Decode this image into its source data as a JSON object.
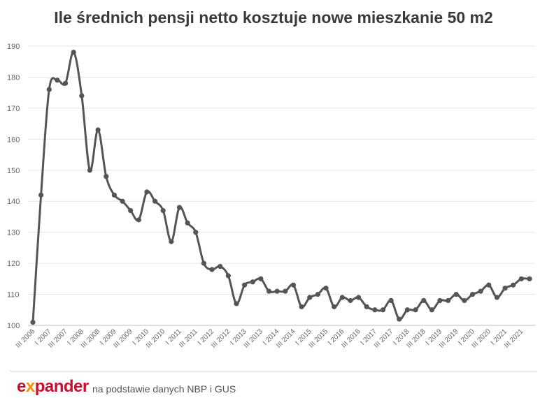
{
  "chart_data": {
    "type": "line",
    "title": "Ile średnich pensji netto kosztuje nowe mieszkanie 50 m2",
    "xlabel": "",
    "ylabel": "",
    "ylim": [
      100,
      190
    ],
    "yticks": [
      100,
      110,
      120,
      130,
      140,
      150,
      160,
      170,
      180,
      190
    ],
    "grid": true,
    "legend": "none",
    "line_color": "#555555",
    "x": [
      "III 2006",
      "IV 2006",
      "I 2007",
      "II 2007",
      "III 2007",
      "IV 2007",
      "I 2008",
      "II 2008",
      "III 2008",
      "IV 2008",
      "I 2009",
      "II 2009",
      "III 2009",
      "IV 2009",
      "I 2010",
      "II 2010",
      "III 2010",
      "IV 2010",
      "I 2011",
      "II 2011",
      "III 2011",
      "IV 2011",
      "I 2012",
      "II 2012",
      "III 2012",
      "IV 2012",
      "I 2013",
      "II 2013",
      "III 2013",
      "IV 2013",
      "I 2014",
      "II 2014",
      "III 2014",
      "IV 2014",
      "I 2015",
      "II 2015",
      "III 2015",
      "IV 2015",
      "I 2016",
      "II 2016",
      "III 2016",
      "IV 2016",
      "I 2017",
      "II 2017",
      "III 2017",
      "IV 2017",
      "I 2018",
      "II 2018",
      "III 2018",
      "IV 2018",
      "I 2019",
      "II 2019",
      "III 2019",
      "IV 2019",
      "I 2020",
      "II 2020",
      "III 2020",
      "IV 2020",
      "I 2021",
      "II 2021",
      "III 2021",
      "IV 2021"
    ],
    "xtick_labels": [
      "III 2006",
      "I 2007",
      "III 2007",
      "I 2008",
      "III 2008",
      "I 2009",
      "III 2009",
      "I 2010",
      "III 2010",
      "I 2011",
      "III 2011",
      "I 2012",
      "III 2012",
      "I 2013",
      "III 2013",
      "I 2014",
      "III 2014",
      "I 2015",
      "III 2015",
      "I 2016",
      "III 2016",
      "I 2017",
      "III 2017",
      "I 2018",
      "III 2018",
      "I 2019",
      "III 2019",
      "I 2020",
      "III 2020",
      "I 2021",
      "III 2021"
    ],
    "series": [
      {
        "values": [
          101,
          142,
          176,
          179,
          178,
          188,
          174,
          150,
          163,
          148,
          142,
          140,
          137,
          134,
          143,
          140,
          137,
          127,
          138,
          133,
          130,
          120,
          118,
          119,
          116,
          107,
          113,
          114,
          115,
          111,
          111,
          111,
          113,
          106,
          109,
          110,
          112,
          106,
          109,
          108,
          109,
          106,
          105,
          105,
          108,
          102,
          105,
          105,
          108,
          105,
          108,
          108,
          110,
          108,
          110,
          111,
          113,
          109,
          112,
          113,
          115,
          115
        ]
      }
    ]
  },
  "footer": {
    "logo_main": "e",
    "logo_x": "x",
    "logo_rest": "pander",
    "source": "na podstawie danych NBP i GUS"
  }
}
